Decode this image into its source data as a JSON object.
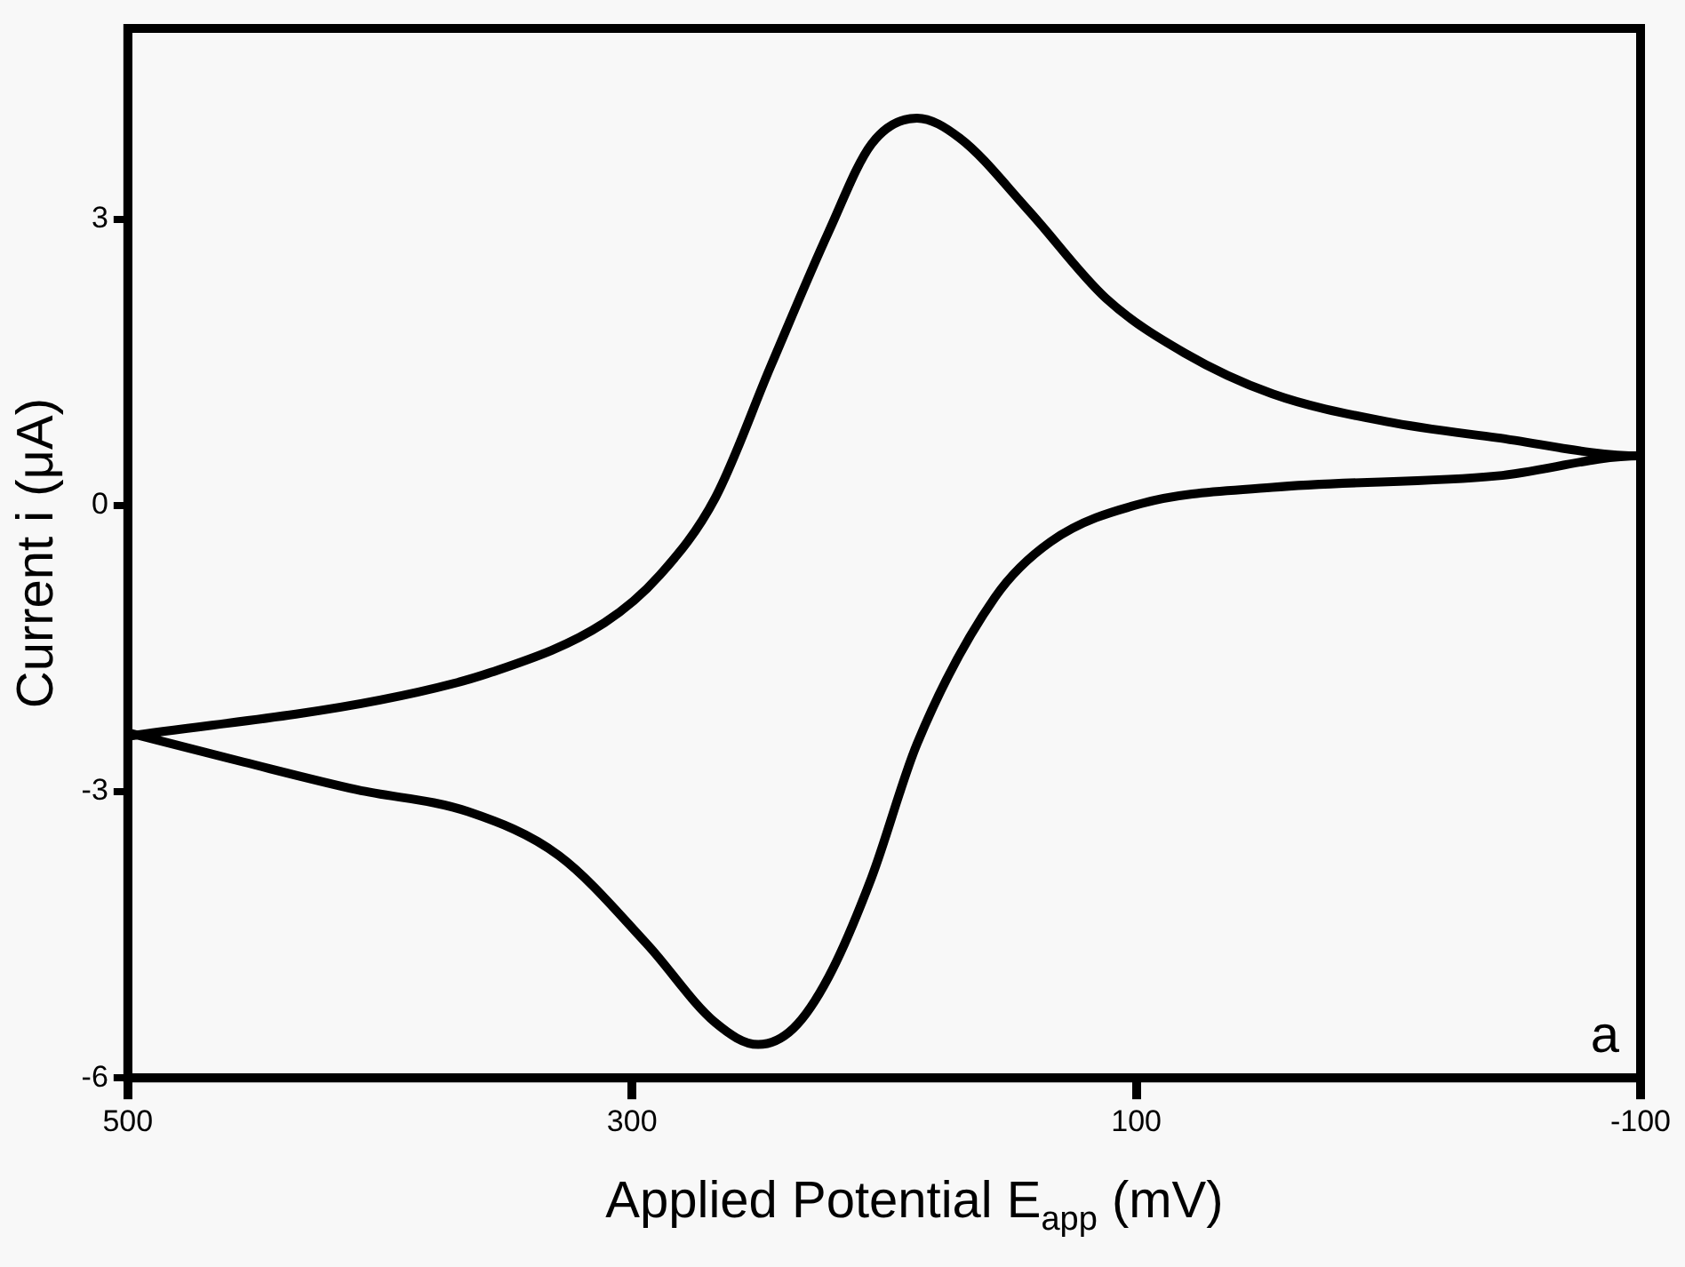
{
  "chart_data": {
    "type": "line",
    "xlabel": "Applied Potential E$_{app}$ (mV)",
    "ylabel": "Current i (μA)",
    "annotations": [
      "a"
    ],
    "xlim": [
      500,
      -100
    ],
    "xticks": [
      500,
      300,
      100,
      -100
    ],
    "ylim": [
      -6,
      5
    ],
    "yticks": [
      -6,
      -3,
      0,
      3
    ],
    "grid": false,
    "legend": false,
    "marker": "none",
    "line_style": "solid",
    "series": [
      {
        "color": "#000000",
        "x": [
          500,
          400,
          356,
          311,
          289,
          267,
          245,
          222,
          205,
          187,
          170,
          143,
          112,
          81,
          46,
          1,
          -43,
          -100,
          -43,
          46,
          98,
          134,
          156,
          187,
          205,
          222,
          236,
          250,
          267,
          294,
          329,
          365,
          409,
          454,
          500
        ],
        "values": [
          -2.42,
          -2.04,
          -1.75,
          -1.23,
          -0.73,
          0.08,
          1.46,
          2.87,
          3.79,
          4.06,
          3.85,
          3.1,
          2.17,
          1.6,
          1.17,
          0.88,
          0.71,
          0.52,
          0.31,
          0.19,
          0.02,
          -0.38,
          -0.96,
          -2.5,
          -3.9,
          -4.94,
          -5.48,
          -5.65,
          -5.42,
          -4.6,
          -3.67,
          -3.21,
          -2.98,
          -2.69,
          -2.38
        ]
      }
    ]
  }
}
